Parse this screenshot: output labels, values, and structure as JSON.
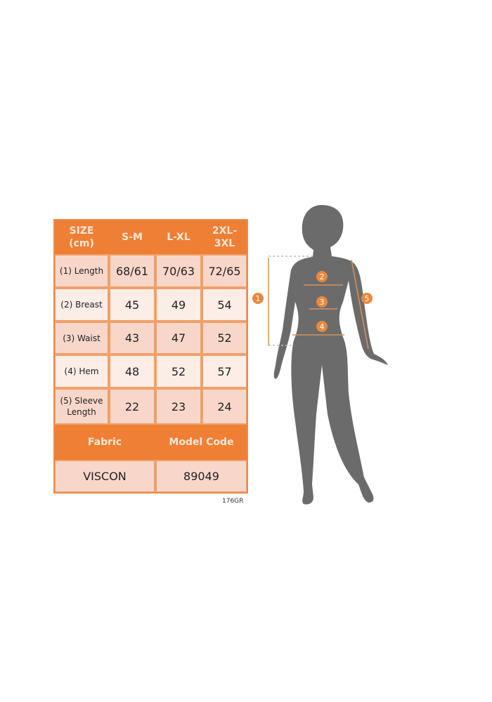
{
  "table": {
    "header": [
      "SIZE\n(cm)",
      "S-M",
      "L-XL",
      "2XL-\n3XL"
    ],
    "rows": [
      {
        "label": "(1) Length",
        "values": [
          "68/61",
          "70/63",
          "72/65"
        ]
      },
      {
        "label": "(2) Breast",
        "values": [
          "45",
          "49",
          "54"
        ]
      },
      {
        "label": "(3) Waist",
        "values": [
          "43",
          "47",
          "52"
        ]
      },
      {
        "label": "(4) Hem",
        "values": [
          "48",
          "52",
          "57"
        ]
      },
      {
        "label": "(5) Sleeve\nLength",
        "values": [
          "22",
          "23",
          "24"
        ]
      }
    ],
    "info_header": [
      "Fabric",
      "Model Code"
    ],
    "info_values": [
      "VISCON",
      "89049"
    ]
  },
  "product_code": "176GR",
  "figure": {
    "markers": [
      "1",
      "2",
      "3",
      "4",
      "5"
    ]
  },
  "colors": {
    "accent": "#ee7f35",
    "cell_dark": "#f8d7ca",
    "cell_light": "#fcede7",
    "silhouette": "#6b6b6b"
  }
}
